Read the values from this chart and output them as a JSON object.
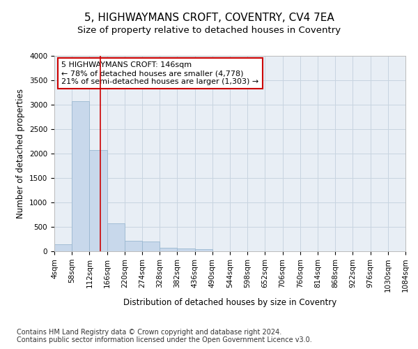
{
  "title": "5, HIGHWAYMANS CROFT, COVENTRY, CV4 7EA",
  "subtitle": "Size of property relative to detached houses in Coventry",
  "xlabel": "Distribution of detached houses by size in Coventry",
  "ylabel": "Number of detached properties",
  "footer_line1": "Contains HM Land Registry data © Crown copyright and database right 2024.",
  "footer_line2": "Contains public sector information licensed under the Open Government Licence v3.0.",
  "annotation_line1": "5 HIGHWAYMANS CROFT: 146sqm",
  "annotation_line2": "← 78% of detached houses are smaller (4,778)",
  "annotation_line3": "21% of semi-detached houses are larger (1,303) →",
  "property_size": 146,
  "bar_color": "#c8d8eb",
  "bar_edge_color": "#9ab8d0",
  "vline_color": "#cc0000",
  "annotation_box_edge_color": "#cc0000",
  "grid_color": "#c8d4e0",
  "bg_color": "#e8eef5",
  "bins": [
    4,
    58,
    112,
    166,
    220,
    274,
    328,
    382,
    436,
    490,
    544,
    598,
    652,
    706,
    760,
    814,
    868,
    922,
    976,
    1030,
    1084
  ],
  "counts": [
    148,
    3075,
    2065,
    565,
    210,
    205,
    75,
    55,
    50,
    0,
    0,
    0,
    0,
    0,
    0,
    0,
    0,
    0,
    0,
    0
  ],
  "ylim": [
    0,
    4000
  ],
  "yticks": [
    0,
    500,
    1000,
    1500,
    2000,
    2500,
    3000,
    3500,
    4000
  ],
  "title_fontsize": 11,
  "subtitle_fontsize": 9.5,
  "axis_label_fontsize": 8.5,
  "tick_fontsize": 7.5,
  "annotation_fontsize": 8,
  "footer_fontsize": 7
}
